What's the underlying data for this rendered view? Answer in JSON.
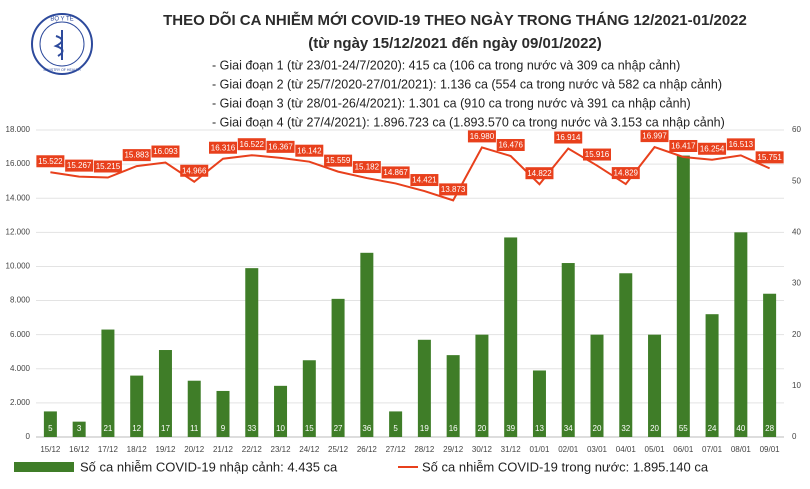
{
  "chart_data": {
    "type": "bar-line",
    "title": "THEO DÕI CA NHIỄM MỚI COVID-19 THEO NGÀY TRONG THÁNG 12/2021-01/2022",
    "subtitle": "(từ ngày 15/12/2021 đến ngày 09/01/2022)",
    "logo_top": "BỘ Y TẾ",
    "logo_bottom": "MINISTRY OF HEALTH",
    "annotations": [
      "- Giai đoạn 1 (từ 23/01-24/7/2020): 415 ca (106 ca trong nước và 309 ca nhập cảnh)",
      "- Giai đoạn 2 (từ 25/7/2020-27/01/2021): 1.136 ca (554 ca trong nước và 582 ca nhập cảnh)",
      "- Giai đoạn 3 (từ 28/01-26/4/2021): 1.301 ca (910 ca trong nước và 391 ca nhập cảnh)",
      "- Giai đoạn 4 (từ 27/4/2021): 1.896.723 ca (1.893.570 ca trong nước và 3.153 ca nhập cảnh)"
    ],
    "categories": [
      "15/12",
      "16/12",
      "17/12",
      "18/12",
      "19/12",
      "20/12",
      "21/12",
      "22/12",
      "23/12",
      "24/12",
      "25/12",
      "26/12",
      "27/12",
      "28/12",
      "29/12",
      "30/12",
      "31/12",
      "01/01",
      "02/01",
      "03/01",
      "04/01",
      "05/01",
      "06/01",
      "07/01",
      "08/01",
      "09/01"
    ],
    "series": [
      {
        "name": "Số ca nhiễm COVID-19 nhập cảnh: 4.435 ca",
        "color": "#3f7d28",
        "axis": "y2",
        "type": "bar",
        "values": [
          5,
          3,
          21,
          12,
          17,
          11,
          9,
          33,
          10,
          15,
          27,
          36,
          5,
          19,
          16,
          20,
          39,
          13,
          34,
          20,
          32,
          20,
          55,
          24,
          40,
          28
        ]
      },
      {
        "name": "Số ca nhiễm COVID-19 trong nước: 1.895.140 ca",
        "color": "#e8401c",
        "type": "line",
        "values": [
          15522,
          15267,
          15215,
          15883,
          16093,
          14966,
          16316,
          16522,
          16367,
          16142,
          15559,
          15182,
          14867,
          14421,
          13873,
          16980,
          16476,
          14822,
          16914,
          15916,
          14829,
          16997,
          16417,
          16254,
          16513,
          15751
        ],
        "value_labels": [
          "15.522",
          "15.267",
          "15.215",
          "15.883",
          "16.093",
          "14.966",
          "16.316",
          "16.522",
          "16.367",
          "16.142",
          "15.559",
          "15.182",
          "14.867",
          "14.421",
          "13.873",
          "16.980",
          "16.476",
          "14.822",
          "16.914",
          "15.916",
          "14.829",
          "16.997",
          "16.417",
          "16.254",
          "16.513",
          "15.751"
        ]
      }
    ],
    "ylim": [
      0,
      18000
    ],
    "yticks": [
      {
        "value": 0,
        "label": "0"
      },
      {
        "value": 2000,
        "label": "2.000"
      },
      {
        "value": 4000,
        "label": "4.000"
      },
      {
        "value": 6000,
        "label": "6.000"
      },
      {
        "value": 8000,
        "label": "8.000"
      },
      {
        "value": 10000,
        "label": "10.000"
      },
      {
        "value": 12000,
        "label": "12.000"
      },
      {
        "value": 14000,
        "label": "14.000"
      },
      {
        "value": 16000,
        "label": "16.000"
      },
      {
        "value": 18000,
        "label": "18.000"
      }
    ],
    "y2lim": [
      0,
      60
    ],
    "y2ticks": [
      0,
      10,
      20,
      30,
      40,
      50,
      60
    ],
    "grid": true
  }
}
